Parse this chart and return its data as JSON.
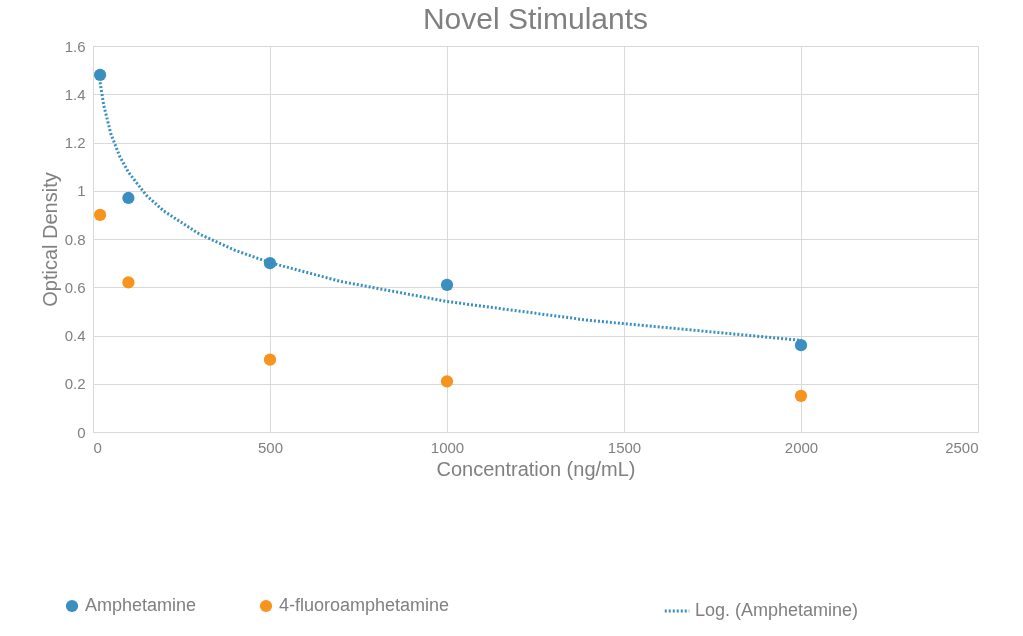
{
  "chart_data": {
    "type": "scatter",
    "title": "Novel Stimulants",
    "xlabel": "Concentration (ng/mL)",
    "ylabel": "Optical Density",
    "x": [
      20,
      100,
      500,
      1000,
      2000
    ],
    "series": [
      {
        "name": "Amphetamine",
        "color": "#3a8fc0",
        "values": [
          1.48,
          0.97,
          0.7,
          0.61,
          0.36
        ]
      },
      {
        "name": "4-fluoroamphetamine",
        "color": "#f7941d",
        "values": [
          0.9,
          0.62,
          0.3,
          0.21,
          0.15
        ]
      },
      {
        "name": "Log. (Amphetamine)",
        "type": "line",
        "color": "#3a8fc0",
        "line_style": "dotted",
        "marker": "none",
        "x": [
          20,
          30,
          50,
          75,
          100,
          150,
          200,
          300,
          400,
          500,
          700,
          1000,
          1400,
          2000
        ],
        "values": [
          1.45,
          1.357,
          1.238,
          1.144,
          1.077,
          0.982,
          0.916,
          0.821,
          0.754,
          0.702,
          0.624,
          0.541,
          0.463,
          0.38
        ]
      }
    ],
    "xlim": [
      0,
      2500
    ],
    "xticks": [
      0,
      500,
      1000,
      1500,
      2000,
      2500
    ],
    "ylim": [
      0,
      1.6
    ],
    "yticks": [
      0,
      0.2,
      0.4,
      0.6,
      0.8,
      1,
      1.2,
      1.4,
      1.6
    ],
    "grid": true,
    "legend": "bottom",
    "marker": "circle"
  }
}
